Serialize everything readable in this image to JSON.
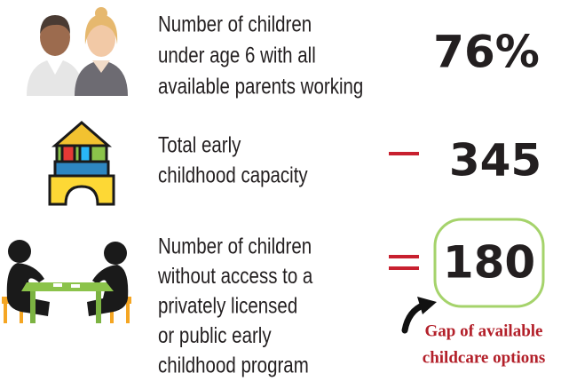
{
  "items": [
    {
      "label_lines": [
        "Number of children",
        "under age 6 with all",
        "available parents working"
      ],
      "value": "76%"
    },
    {
      "label_lines": [
        "Total early",
        "childhood capacity"
      ],
      "value": "345"
    },
    {
      "label_lines": [
        "Number of children",
        "without access to a",
        "privately licensed",
        "or public early",
        "childhood program"
      ],
      "value": "180"
    }
  ],
  "annotation_lines": [
    "Gap of available",
    "childcare options"
  ]
}
